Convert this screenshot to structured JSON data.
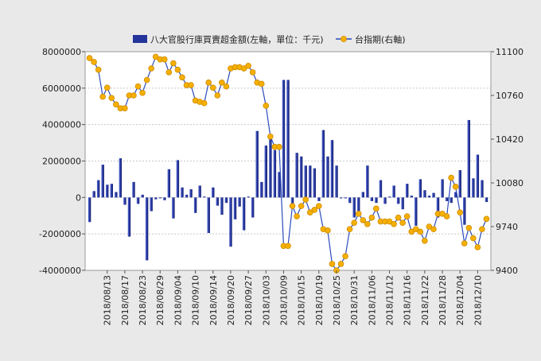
{
  "chart_data": {
    "type": "bar+line",
    "legend_position": "top",
    "grid": true,
    "series": [
      {
        "name": "八大官股行庫買賣超金額(左軸，單位：千元)",
        "axis": "left",
        "kind": "bar",
        "color": "#24349a",
        "values": [
          -1350000,
          350000,
          950000,
          1800000,
          700000,
          750000,
          300000,
          2150000,
          -400000,
          -2150000,
          850000,
          -350000,
          150000,
          -3450000,
          -750000,
          -100000,
          -50000,
          -150000,
          1550000,
          -1150000,
          2050000,
          550000,
          150000,
          450000,
          -850000,
          650000,
          50000,
          -1950000,
          550000,
          -450000,
          -950000,
          -300000,
          -2700000,
          -1200000,
          -500000,
          -1800000,
          50000,
          -1100000,
          3650000,
          850000,
          2850000,
          3250000,
          2600000,
          1400000,
          6450000,
          6450000,
          -350000,
          2450000,
          2250000,
          1750000,
          1750000,
          1600000,
          -200000,
          3700000,
          2250000,
          3150000,
          1750000,
          -50000,
          -50000,
          -300000,
          -1100000,
          -900000,
          300000,
          1750000,
          -200000,
          -300000,
          950000,
          -350000,
          50000,
          650000,
          -350000,
          -650000,
          750000,
          100000,
          -1550000,
          1000000,
          400000,
          100000,
          250000,
          -1100000,
          1000000,
          -200000,
          -300000,
          300000,
          1500000,
          -1500000,
          4250000,
          1050000,
          2350000,
          950000,
          -250000
        ]
      },
      {
        "name": "台指期(右軸)",
        "axis": "right",
        "kind": "line",
        "color": "#2b4bbd",
        "marker_color": "#f5b000",
        "values": [
          11050,
          11020,
          10960,
          10750,
          10820,
          10740,
          10690,
          10660,
          10660,
          10760,
          10760,
          10830,
          10780,
          10880,
          10970,
          11060,
          11040,
          11040,
          10940,
          11010,
          10960,
          10900,
          10840,
          10840,
          10720,
          10710,
          10700,
          10860,
          10820,
          10760,
          10860,
          10830,
          10970,
          10980,
          10980,
          10970,
          10990,
          10940,
          10860,
          10850,
          10680,
          10440,
          10360,
          10360,
          9590,
          9590,
          9900,
          9820,
          9900,
          9950,
          9850,
          9870,
          9900,
          9720,
          9710,
          9450,
          9400,
          9450,
          9510,
          9720,
          9770,
          9840,
          9790,
          9760,
          9810,
          9880,
          9780,
          9780,
          9780,
          9760,
          9810,
          9770,
          9820,
          9700,
          9720,
          9700,
          9630,
          9740,
          9720,
          9840,
          9840,
          9820,
          10120,
          10050,
          9850,
          9610,
          9730,
          9650,
          9580,
          9720,
          9800
        ]
      }
    ],
    "tick_labels": [
      "2018/08/13",
      "2018/08/17",
      "2018/08/23",
      "2018/08/29",
      "2018/09/04",
      "2018/09/10",
      "2018/09/14",
      "2018/09/20",
      "2018/09/27",
      "2018/10/03",
      "2018/10/09",
      "2018/10/15",
      "2018/10/19",
      "2018/10/25",
      "2018/10/31",
      "2018/11/06",
      "2018/11/12",
      "2018/11/16",
      "2018/11/22",
      "2018/11/28",
      "2018/12/04",
      "2018/12/10"
    ],
    "tick_positions": [
      4,
      8,
      12,
      16,
      20,
      24,
      28,
      32,
      36,
      40,
      44,
      48,
      52,
      56,
      60,
      64,
      68,
      72,
      76,
      80,
      84,
      88
    ],
    "y_left": {
      "min": -4000000,
      "max": 8000000,
      "ticks": [
        -4000000,
        -2000000,
        0,
        2000000,
        4000000,
        6000000,
        8000000
      ]
    },
    "y_right": {
      "min": 9400,
      "max": 11100,
      "ticks": [
        9400,
        9740,
        10080,
        10420,
        10760,
        11100
      ]
    }
  }
}
